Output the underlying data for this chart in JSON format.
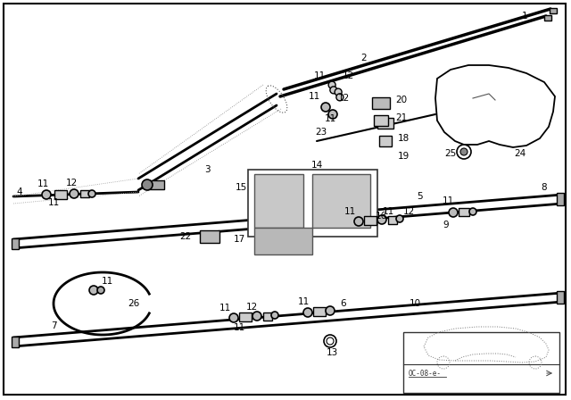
{
  "bg_color": "#f5f5f5",
  "border_color": "#000000",
  "line_color": "#000000",
  "fig_width": 6.4,
  "fig_height": 4.48,
  "dpi": 100,
  "watermark_text": "OC-08-e-"
}
